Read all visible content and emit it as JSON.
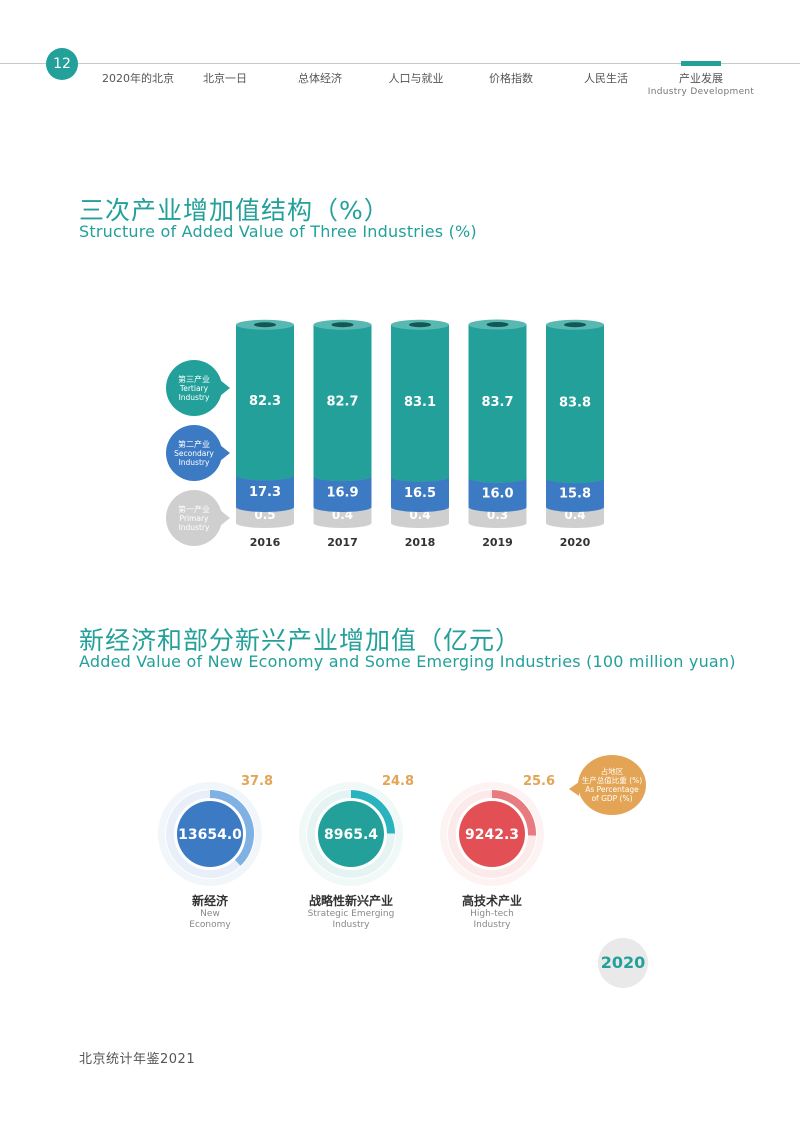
{
  "header": {
    "page_number": "12",
    "nav": [
      {
        "label": "2020年的北京"
      },
      {
        "label": "北京一日"
      },
      {
        "label": "总体经济"
      },
      {
        "label": "人口与就业"
      },
      {
        "label": "价格指数"
      },
      {
        "label": "人民生活"
      },
      {
        "label": "产业发展",
        "sub": "Industry Development"
      }
    ]
  },
  "section1": {
    "title_cn": "三次产业增加值结构（%）",
    "title_en": "Structure of Added Value of Three Industries (%)",
    "legend": {
      "tertiary_cn": "第三产业",
      "tertiary_en1": "Tertiary",
      "tertiary_en2": "Industry",
      "secondary_cn": "第二产业",
      "secondary_en1": "Secondary",
      "secondary_en2": "Industry",
      "primary_cn": "第一产业",
      "primary_en1": "Primary",
      "primary_en2": "Industry"
    }
  },
  "section2": {
    "title_cn": "新经济和部分新兴产业增加值（亿元）",
    "title_en": "Added Value of New Economy and Some Emerging Industries (100 million yuan)",
    "note_cn1": "占地区",
    "note_cn2": "生产总值比重 (%)",
    "note_en1": "As Percentage",
    "note_en2": "of GDP (%)",
    "year": "2020"
  },
  "chart_data": [
    {
      "type": "bar",
      "stacked": true,
      "categories": [
        "2016",
        "2017",
        "2018",
        "2019",
        "2020"
      ],
      "series": [
        {
          "name": "第一产业 Primary Industry",
          "values": [
            0.5,
            0.4,
            0.4,
            0.3,
            0.4
          ],
          "color": "#cfcfcf"
        },
        {
          "name": "第二产业 Secondary Industry",
          "values": [
            17.3,
            16.9,
            16.5,
            16.0,
            15.8
          ],
          "color": "#3d7ac4"
        },
        {
          "name": "第三产业 Tertiary Industry",
          "values": [
            82.3,
            82.7,
            83.1,
            83.7,
            83.8
          ],
          "color": "#23a09a"
        }
      ],
      "value_labels": [
        [
          "0.5",
          "0.4",
          "0.4",
          "0.3",
          "0.4"
        ],
        [
          "17.3",
          "16.9",
          "16.5",
          "16.0",
          "15.8"
        ],
        [
          "82.3",
          "82.7",
          "83.1",
          "83.7",
          "83.8"
        ]
      ],
      "ylim": [
        0,
        100
      ],
      "grid": false
    },
    {
      "type": "pie",
      "style": "ring-gauge",
      "items": [
        {
          "value": 13654.0,
          "value_label": "13654.0",
          "percent": 37.8,
          "percent_label": "37.8",
          "name_cn": "新经济",
          "name_en1": "New",
          "name_en2": "Economy",
          "color": "#3d7ac4",
          "accent": "#7fb1e3"
        },
        {
          "value": 8965.4,
          "value_label": "8965.4",
          "percent": 24.8,
          "percent_label": "24.8",
          "name_cn": "战略性新兴产业",
          "name_en1": "Strategic Emerging",
          "name_en2": "Industry",
          "color": "#23a09a",
          "accent": "#2ab3bf"
        },
        {
          "value": 9242.3,
          "value_label": "9242.3",
          "percent": 25.6,
          "percent_label": "25.6",
          "name_cn": "高技术产业",
          "name_en1": "High-tech",
          "name_en2": "Industry",
          "color": "#e25055",
          "accent": "#e87b80"
        }
      ],
      "percent_color": "#e3a555"
    }
  ],
  "footer": {
    "text": "北京统计年鉴2021"
  }
}
